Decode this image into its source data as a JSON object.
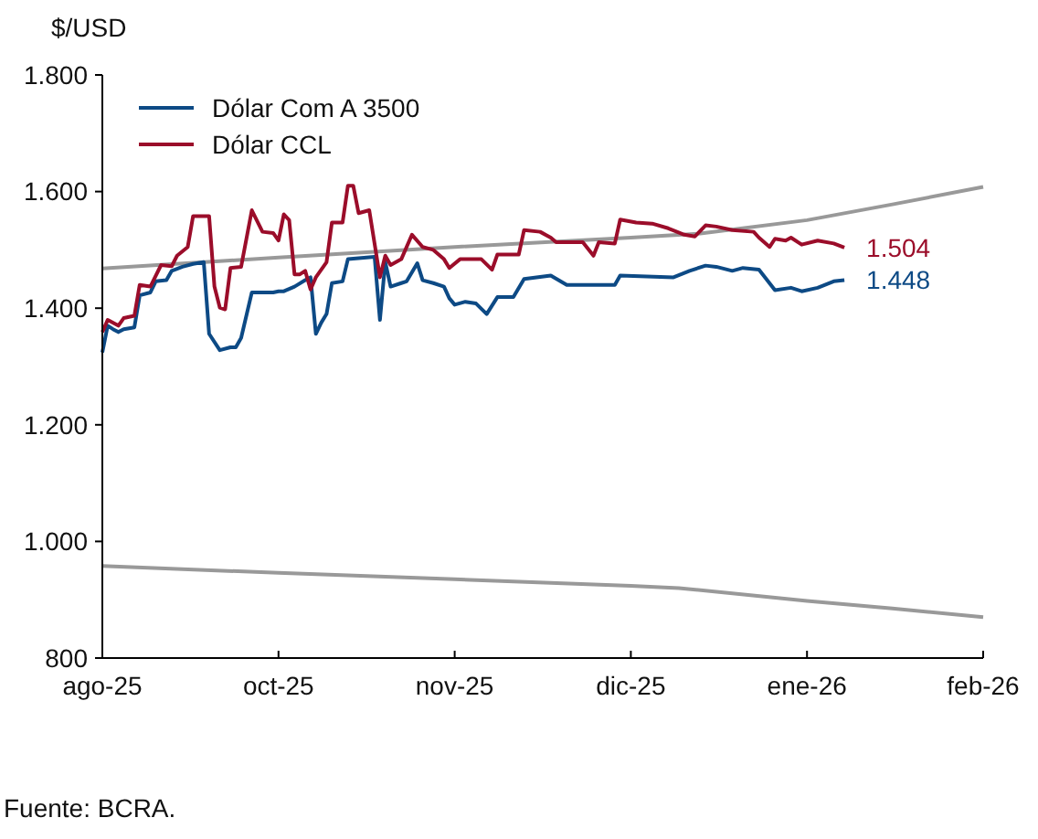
{
  "chart_data": {
    "type": "line",
    "ylabel": "$/USD",
    "xlim": [
      "2025-08-29",
      "2026-02-10"
    ],
    "xticks": [
      {
        "value": "2025-08-29",
        "label": "ago-25"
      },
      {
        "value": "2025-10-01",
        "label": "oct-25"
      },
      {
        "value": "2025-11-03",
        "label": "nov-25"
      },
      {
        "value": "2025-12-06",
        "label": "dic-25"
      },
      {
        "value": "2026-01-08",
        "label": "ene-26"
      },
      {
        "value": "2026-02-10",
        "label": "feb-26"
      }
    ],
    "ylim": [
      800,
      1800
    ],
    "yticks": [
      {
        "value": 800,
        "label": "800"
      },
      {
        "value": 1000,
        "label": "1.000"
      },
      {
        "value": 1200,
        "label": "1.200"
      },
      {
        "value": 1400,
        "label": "1.400"
      },
      {
        "value": 1600,
        "label": "1.600"
      },
      {
        "value": 1800,
        "label": "1.800"
      }
    ],
    "grid": false,
    "legend": "top left",
    "marker": "none",
    "line_style": "solid",
    "series": [
      {
        "name": "Dólar Com A 3500",
        "color": "#0d4a85",
        "x": [
          "2025-08-29",
          "2025-08-30",
          "2025-08-31",
          "2025-09-01",
          "2025-09-02",
          "2025-09-04",
          "2025-09-05",
          "2025-09-07",
          "2025-09-08",
          "2025-09-10",
          "2025-09-11",
          "2025-09-13",
          "2025-09-15",
          "2025-09-17",
          "2025-09-18",
          "2025-09-20",
          "2025-09-22",
          "2025-09-23",
          "2025-09-24",
          "2025-09-26",
          "2025-09-30",
          "2025-10-01",
          "2025-10-02",
          "2025-10-04",
          "2025-10-06",
          "2025-10-07",
          "2025-10-08",
          "2025-10-09",
          "2025-10-10",
          "2025-10-11",
          "2025-10-13",
          "2025-10-14",
          "2025-10-19",
          "2025-10-20",
          "2025-10-21",
          "2025-10-22",
          "2025-10-24",
          "2025-10-25",
          "2025-10-27",
          "2025-10-28",
          "2025-10-30",
          "2025-11-01",
          "2025-11-02",
          "2025-11-03",
          "2025-11-05",
          "2025-11-07",
          "2025-11-09",
          "2025-11-11",
          "2025-11-14",
          "2025-11-16",
          "2025-11-21",
          "2025-11-24",
          "2025-12-03",
          "2025-12-04",
          "2025-12-14",
          "2025-12-17",
          "2025-12-20",
          "2025-12-22",
          "2025-12-25",
          "2025-12-27",
          "2025-12-30",
          "2026-01-02",
          "2026-01-05",
          "2026-01-07",
          "2026-01-10",
          "2026-01-13",
          "2026-01-15"
        ],
        "values": [
          1324,
          1370,
          1364,
          1359,
          1364,
          1367,
          1422,
          1427,
          1446,
          1448,
          1464,
          1471,
          1476,
          1479,
          1356,
          1328,
          1333,
          1333,
          1349,
          1427,
          1427,
          1429,
          1429,
          1437,
          1448,
          1453,
          1356,
          1375,
          1390,
          1443,
          1446,
          1484,
          1488,
          1380,
          1479,
          1437,
          1443,
          1446,
          1477,
          1448,
          1443,
          1437,
          1417,
          1406,
          1411,
          1408,
          1390,
          1419,
          1419,
          1450,
          1456,
          1440,
          1440,
          1456,
          1453,
          1464,
          1473,
          1471,
          1464,
          1469,
          1466,
          1431,
          1435,
          1429,
          1435,
          1446,
          1448
        ]
      },
      {
        "name": "Dólar CCL",
        "color": "#9b0d2a",
        "x": [
          "2025-08-29",
          "2025-08-30",
          "2025-09-01",
          "2025-09-02",
          "2025-09-04",
          "2025-09-05",
          "2025-09-07",
          "2025-09-09",
          "2025-09-11",
          "2025-09-12",
          "2025-09-14",
          "2025-09-15",
          "2025-09-18",
          "2025-09-19",
          "2025-09-20",
          "2025-09-21",
          "2025-09-22",
          "2025-09-24",
          "2025-09-26",
          "2025-09-28",
          "2025-09-30",
          "2025-10-01",
          "2025-10-02",
          "2025-10-03",
          "2025-10-04",
          "2025-10-05",
          "2025-10-06",
          "2025-10-07",
          "2025-10-08",
          "2025-10-10",
          "2025-10-11",
          "2025-10-13",
          "2025-10-14",
          "2025-10-15",
          "2025-10-16",
          "2025-10-18",
          "2025-10-20",
          "2025-10-21",
          "2025-10-22",
          "2025-10-24",
          "2025-10-26",
          "2025-10-28",
          "2025-10-30",
          "2025-11-01",
          "2025-11-02",
          "2025-11-04",
          "2025-11-08",
          "2025-11-10",
          "2025-11-11",
          "2025-11-15",
          "2025-11-16",
          "2025-11-19",
          "2025-11-21",
          "2025-11-22",
          "2025-11-27",
          "2025-11-29",
          "2025-11-30",
          "2025-12-03",
          "2025-12-04",
          "2025-12-07",
          "2025-12-10",
          "2025-12-13",
          "2025-12-16",
          "2025-12-18",
          "2025-12-20",
          "2025-12-22",
          "2025-12-25",
          "2025-12-29",
          "2025-12-30",
          "2026-01-01",
          "2026-01-02",
          "2026-01-04",
          "2026-01-05",
          "2026-01-07",
          "2026-01-10",
          "2026-01-13",
          "2026-01-15"
        ],
        "values": [
          1359,
          1380,
          1370,
          1383,
          1387,
          1440,
          1437,
          1474,
          1472,
          1490,
          1505,
          1558,
          1558,
          1437,
          1401,
          1398,
          1469,
          1471,
          1568,
          1531,
          1529,
          1516,
          1561,
          1551,
          1458,
          1458,
          1464,
          1432,
          1453,
          1479,
          1547,
          1547,
          1610,
          1610,
          1563,
          1568,
          1453,
          1490,
          1474,
          1484,
          1526,
          1505,
          1500,
          1484,
          1469,
          1484,
          1484,
          1466,
          1492,
          1492,
          1534,
          1531,
          1521,
          1513,
          1513,
          1490,
          1513,
          1511,
          1552,
          1547,
          1545,
          1537,
          1526,
          1523,
          1542,
          1540,
          1534,
          1531,
          1521,
          1505,
          1519,
          1516,
          1521,
          1509,
          1516,
          1511,
          1504
        ]
      },
      {
        "color": "#999999",
        "x": [
          "2025-08-29",
          "2025-10-01",
          "2025-11-03",
          "2025-12-06",
          "2025-12-19",
          "2026-01-08",
          "2026-01-24",
          "2026-02-10"
        ],
        "values": [
          1468,
          1487,
          1505,
          1521,
          1528,
          1551,
          1578,
          1608
        ]
      },
      {
        "color": "#999999",
        "x": [
          "2025-08-29",
          "2025-10-01",
          "2025-11-03",
          "2025-12-06",
          "2025-12-15",
          "2026-01-08",
          "2026-01-24",
          "2026-02-10"
        ],
        "values": [
          958,
          946,
          935,
          924,
          920,
          898,
          885,
          870
        ]
      }
    ],
    "annotations": [
      {
        "text": "1.504",
        "x": "2026-01-15",
        "y": 1504
      },
      {
        "text": "1.448",
        "x": "2026-01-15",
        "y": 1448
      },
      "Fuente: BCRA."
    ]
  }
}
